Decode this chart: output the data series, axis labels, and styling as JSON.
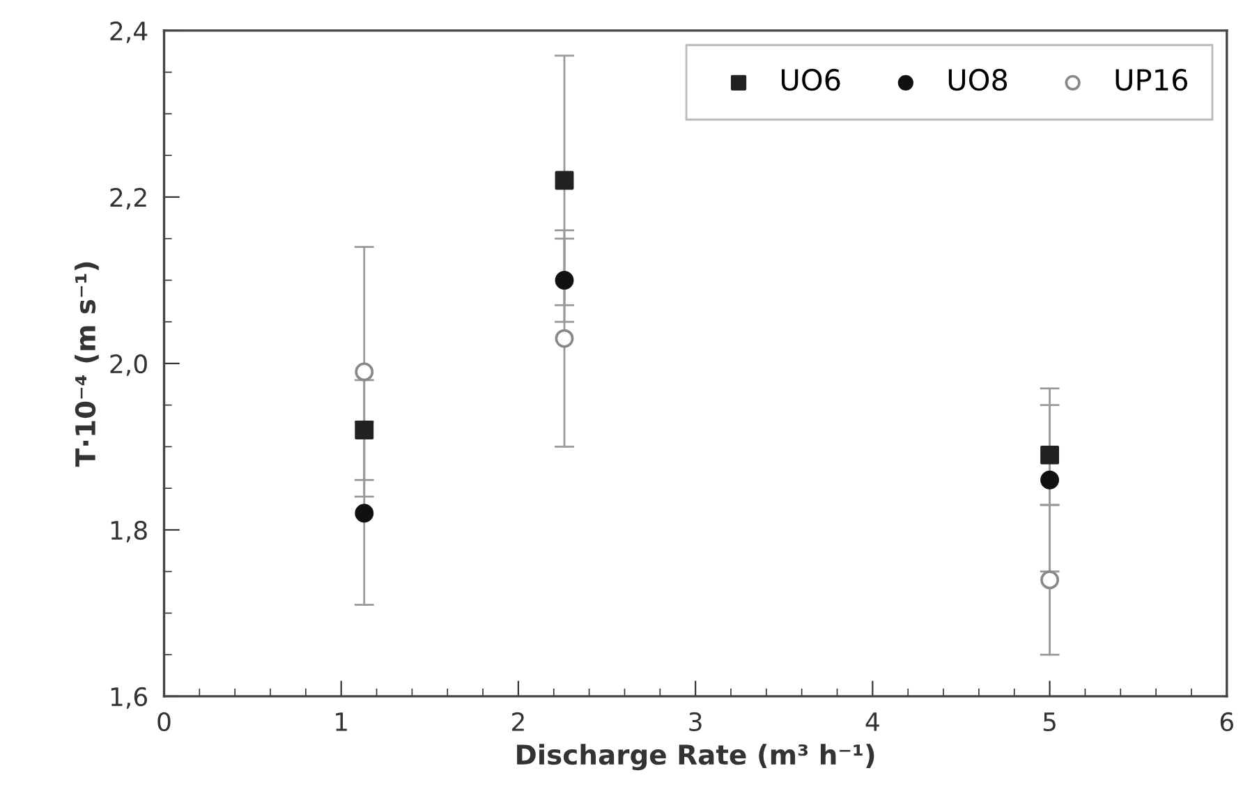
{
  "chart_data": {
    "type": "scatter",
    "xlabel": "Discharge Rate (m³ h⁻¹)",
    "ylabel": "T·10⁻⁴ (m s⁻¹)",
    "xlim": [
      0,
      6
    ],
    "ylim": [
      1.6,
      2.4
    ],
    "xticks": [
      0,
      {
        "value": 0.2,
        "label": null
      },
      {
        "value": 0.4,
        "label": null
      },
      {
        "value": 0.6,
        "label": null
      },
      {
        "value": 0.8,
        "label": null
      },
      1,
      {
        "value": 1.2,
        "label": null
      },
      {
        "value": 1.4,
        "label": null
      },
      {
        "value": 1.6,
        "label": null
      },
      {
        "value": 1.8,
        "label": null
      },
      2,
      {
        "value": 2.2,
        "label": null
      },
      {
        "value": 2.4,
        "label": null
      },
      {
        "value": 2.6,
        "label": null
      },
      {
        "value": 2.8,
        "label": null
      },
      3,
      {
        "value": 3.2,
        "label": null
      },
      {
        "value": 3.4,
        "label": null
      },
      {
        "value": 3.6,
        "label": null
      },
      {
        "value": 3.8,
        "label": null
      },
      4,
      {
        "value": 4.2,
        "label": null
      },
      {
        "value": 4.4,
        "label": null
      },
      {
        "value": 4.6,
        "label": null
      },
      {
        "value": 4.8,
        "label": null
      },
      5,
      {
        "value": 5.2,
        "label": null
      },
      {
        "value": 5.4,
        "label": null
      },
      {
        "value": 5.6,
        "label": null
      },
      {
        "value": 5.8,
        "label": null
      },
      6
    ],
    "yticks": [
      {
        "value": 1.6,
        "label": "1,6"
      },
      {
        "value": 1.65,
        "label": null
      },
      {
        "value": 1.7,
        "label": null
      },
      {
        "value": 1.75,
        "label": null
      },
      {
        "value": 1.8,
        "label": "1,8"
      },
      {
        "value": 1.85,
        "label": null
      },
      {
        "value": 1.9,
        "label": null
      },
      {
        "value": 1.95,
        "label": null
      },
      {
        "value": 2.0,
        "label": "2,0"
      },
      {
        "value": 2.05,
        "label": null
      },
      {
        "value": 2.1,
        "label": null
      },
      {
        "value": 2.15,
        "label": null
      },
      {
        "value": 2.2,
        "label": "2,2"
      },
      {
        "value": 2.25,
        "label": null
      },
      {
        "value": 2.3,
        "label": null
      },
      {
        "value": 2.35,
        "label": null
      },
      {
        "value": 2.4,
        "label": "2,4"
      }
    ],
    "grid": false,
    "legend": "top right",
    "x": [
      1.13,
      2.26,
      5
    ],
    "series": [
      {
        "name": "UO6",
        "color": "#222222",
        "marker": "square",
        "values": [
          1.92,
          2.22,
          1.89
        ],
        "errors": [
          0.06,
          0.15,
          0.06
        ]
      },
      {
        "name": "UO8",
        "color": "#111111",
        "marker": "circle",
        "values": [
          1.82,
          2.1,
          1.86
        ],
        "errors": [
          0.11,
          0.05,
          0.11
        ]
      },
      {
        "name": "UP16",
        "color": "#888888",
        "marker": "open circle",
        "values": [
          1.99,
          2.03,
          1.74
        ],
        "errors": [
          0.15,
          0.13,
          0.09
        ]
      }
    ]
  }
}
